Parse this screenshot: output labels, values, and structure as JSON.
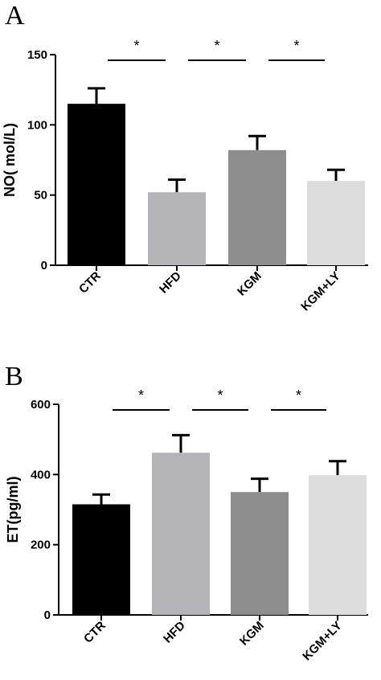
{
  "chart_data": [
    {
      "panel": "A",
      "type": "bar",
      "categories": [
        "CTR",
        "HFD",
        "KGM",
        "KGM+LY"
      ],
      "values": [
        115,
        52,
        82,
        60
      ],
      "errors": [
        11,
        9,
        10,
        8
      ],
      "colors": [
        "#000000",
        "#b4b4b8",
        "#8e8e8e",
        "#dcdcdc"
      ],
      "ylabel": "NO( mol/L)",
      "ylim": [
        0,
        150
      ],
      "yticks": [
        0,
        50,
        100,
        150
      ],
      "grid": false,
      "significance": [
        {
          "from": 0,
          "to": 1,
          "label": "*",
          "level": 146
        },
        {
          "from": 1,
          "to": 2,
          "label": "*",
          "level": 146
        },
        {
          "from": 2,
          "to": 3,
          "label": "*",
          "level": 146
        }
      ]
    },
    {
      "panel": "B",
      "type": "bar",
      "categories": [
        "CTR",
        "HFD",
        "KGM",
        "KGM+LY"
      ],
      "values": [
        315,
        462,
        350,
        398
      ],
      "errors": [
        28,
        50,
        38,
        40
      ],
      "colors": [
        "#000000",
        "#b4b4b8",
        "#8e8e8e",
        "#dcdcdc"
      ],
      "ylabel": "ET(pg/ml)",
      "ylim": [
        0,
        600
      ],
      "yticks": [
        0,
        200,
        400,
        600
      ],
      "grid": false,
      "significance": [
        {
          "from": 0,
          "to": 1,
          "label": "*",
          "level": 585
        },
        {
          "from": 1,
          "to": 2,
          "label": "*",
          "level": 585
        },
        {
          "from": 2,
          "to": 3,
          "label": "*",
          "level": 585
        }
      ]
    }
  ]
}
